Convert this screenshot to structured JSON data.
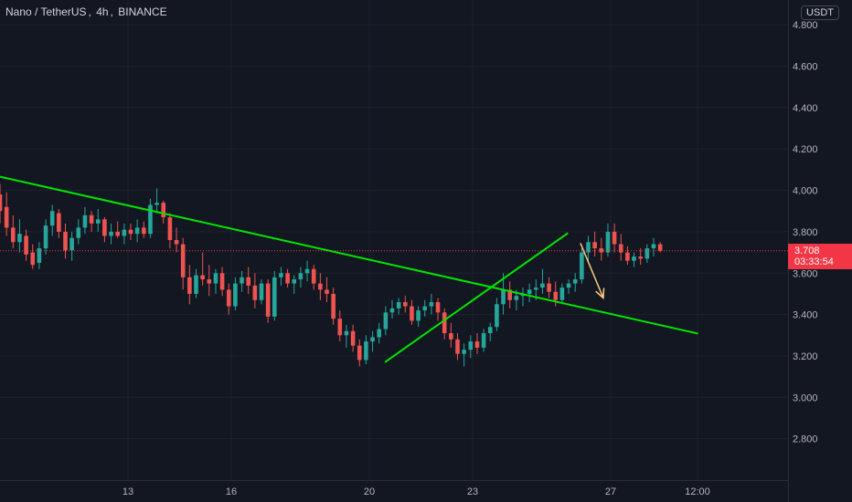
{
  "header": {
    "symbol": "Nano / TetherUS",
    "interval": "4h",
    "exchange": "BINANCE",
    "currency": "USDT"
  },
  "last_price": {
    "value": "3.708",
    "countdown": "03:33:54",
    "color": "#f23645"
  },
  "colors": {
    "background": "#131722",
    "up": "#26a69a",
    "down": "#ef5350",
    "trendline": "#00e600",
    "arrow": "#ffcc80"
  },
  "chart_data": {
    "type": "candlestick",
    "y_ticks": [
      "4.800",
      "4.600",
      "4.400",
      "4.200",
      "4.000",
      "3.800",
      "3.600",
      "3.400",
      "3.200",
      "3.000",
      "2.800"
    ],
    "x_ticks": [
      "13",
      "16",
      "20",
      "23",
      "27",
      "12:00"
    ],
    "ylim": [
      2.6,
      4.92
    ],
    "current_price": 3.708,
    "candles": [
      {
        "o": 3.98,
        "h": 4.03,
        "l": 3.84,
        "c": 3.9
      },
      {
        "o": 3.92,
        "h": 3.99,
        "l": 3.78,
        "c": 3.82
      },
      {
        "o": 3.82,
        "h": 3.88,
        "l": 3.72,
        "c": 3.75
      },
      {
        "o": 3.75,
        "h": 3.86,
        "l": 3.7,
        "c": 3.79
      },
      {
        "o": 3.78,
        "h": 3.81,
        "l": 3.66,
        "c": 3.69
      },
      {
        "o": 3.7,
        "h": 3.74,
        "l": 3.62,
        "c": 3.64
      },
      {
        "o": 3.65,
        "h": 3.75,
        "l": 3.62,
        "c": 3.72
      },
      {
        "o": 3.72,
        "h": 3.86,
        "l": 3.69,
        "c": 3.83
      },
      {
        "o": 3.83,
        "h": 3.93,
        "l": 3.78,
        "c": 3.9
      },
      {
        "o": 3.89,
        "h": 3.91,
        "l": 3.77,
        "c": 3.8
      },
      {
        "o": 3.8,
        "h": 3.84,
        "l": 3.67,
        "c": 3.71
      },
      {
        "o": 3.71,
        "h": 3.8,
        "l": 3.66,
        "c": 3.77
      },
      {
        "o": 3.77,
        "h": 3.86,
        "l": 3.74,
        "c": 3.82
      },
      {
        "o": 3.82,
        "h": 3.92,
        "l": 3.79,
        "c": 3.88
      },
      {
        "o": 3.88,
        "h": 3.9,
        "l": 3.8,
        "c": 3.84
      },
      {
        "o": 3.84,
        "h": 3.91,
        "l": 3.8,
        "c": 3.86
      },
      {
        "o": 3.86,
        "h": 3.87,
        "l": 3.75,
        "c": 3.78
      },
      {
        "o": 3.78,
        "h": 3.84,
        "l": 3.74,
        "c": 3.8
      },
      {
        "o": 3.8,
        "h": 3.85,
        "l": 3.77,
        "c": 3.78
      },
      {
        "o": 3.78,
        "h": 3.84,
        "l": 3.74,
        "c": 3.81
      },
      {
        "o": 3.81,
        "h": 3.84,
        "l": 3.76,
        "c": 3.79
      },
      {
        "o": 3.79,
        "h": 3.86,
        "l": 3.75,
        "c": 3.82
      },
      {
        "o": 3.82,
        "h": 3.85,
        "l": 3.77,
        "c": 3.79
      },
      {
        "o": 3.79,
        "h": 3.96,
        "l": 3.77,
        "c": 3.93
      },
      {
        "o": 3.93,
        "h": 4.01,
        "l": 3.89,
        "c": 3.94
      },
      {
        "o": 3.94,
        "h": 3.95,
        "l": 3.84,
        "c": 3.87
      },
      {
        "o": 3.87,
        "h": 3.89,
        "l": 3.72,
        "c": 3.76
      },
      {
        "o": 3.76,
        "h": 3.82,
        "l": 3.7,
        "c": 3.74
      },
      {
        "o": 3.74,
        "h": 3.77,
        "l": 3.52,
        "c": 3.58
      },
      {
        "o": 3.58,
        "h": 3.64,
        "l": 3.45,
        "c": 3.5
      },
      {
        "o": 3.5,
        "h": 3.62,
        "l": 3.48,
        "c": 3.59
      },
      {
        "o": 3.59,
        "h": 3.7,
        "l": 3.54,
        "c": 3.57
      },
      {
        "o": 3.57,
        "h": 3.64,
        "l": 3.49,
        "c": 3.55
      },
      {
        "o": 3.55,
        "h": 3.62,
        "l": 3.5,
        "c": 3.6
      },
      {
        "o": 3.6,
        "h": 3.63,
        "l": 3.49,
        "c": 3.52
      },
      {
        "o": 3.52,
        "h": 3.55,
        "l": 3.4,
        "c": 3.44
      },
      {
        "o": 3.44,
        "h": 3.58,
        "l": 3.42,
        "c": 3.55
      },
      {
        "o": 3.55,
        "h": 3.61,
        "l": 3.51,
        "c": 3.58
      },
      {
        "o": 3.58,
        "h": 3.63,
        "l": 3.5,
        "c": 3.54
      },
      {
        "o": 3.54,
        "h": 3.6,
        "l": 3.43,
        "c": 3.47
      },
      {
        "o": 3.47,
        "h": 3.57,
        "l": 3.45,
        "c": 3.55
      },
      {
        "o": 3.55,
        "h": 3.57,
        "l": 3.36,
        "c": 3.39
      },
      {
        "o": 3.39,
        "h": 3.61,
        "l": 3.37,
        "c": 3.58
      },
      {
        "o": 3.58,
        "h": 3.63,
        "l": 3.54,
        "c": 3.6
      },
      {
        "o": 3.6,
        "h": 3.62,
        "l": 3.53,
        "c": 3.55
      },
      {
        "o": 3.55,
        "h": 3.59,
        "l": 3.5,
        "c": 3.57
      },
      {
        "o": 3.57,
        "h": 3.63,
        "l": 3.53,
        "c": 3.6
      },
      {
        "o": 3.6,
        "h": 3.66,
        "l": 3.56,
        "c": 3.62
      },
      {
        "o": 3.62,
        "h": 3.64,
        "l": 3.52,
        "c": 3.55
      },
      {
        "o": 3.55,
        "h": 3.6,
        "l": 3.47,
        "c": 3.52
      },
      {
        "o": 3.52,
        "h": 3.58,
        "l": 3.46,
        "c": 3.5
      },
      {
        "o": 3.5,
        "h": 3.53,
        "l": 3.35,
        "c": 3.38
      },
      {
        "o": 3.38,
        "h": 3.42,
        "l": 3.27,
        "c": 3.3
      },
      {
        "o": 3.3,
        "h": 3.35,
        "l": 3.24,
        "c": 3.32
      },
      {
        "o": 3.32,
        "h": 3.35,
        "l": 3.22,
        "c": 3.25
      },
      {
        "o": 3.25,
        "h": 3.28,
        "l": 3.15,
        "c": 3.18
      },
      {
        "o": 3.18,
        "h": 3.3,
        "l": 3.16,
        "c": 3.27
      },
      {
        "o": 3.27,
        "h": 3.32,
        "l": 3.22,
        "c": 3.29
      },
      {
        "o": 3.29,
        "h": 3.36,
        "l": 3.26,
        "c": 3.33
      },
      {
        "o": 3.33,
        "h": 3.44,
        "l": 3.3,
        "c": 3.41
      },
      {
        "o": 3.41,
        "h": 3.47,
        "l": 3.38,
        "c": 3.43
      },
      {
        "o": 3.43,
        "h": 3.48,
        "l": 3.4,
        "c": 3.46
      },
      {
        "o": 3.46,
        "h": 3.49,
        "l": 3.41,
        "c": 3.44
      },
      {
        "o": 3.44,
        "h": 3.47,
        "l": 3.35,
        "c": 3.37
      },
      {
        "o": 3.37,
        "h": 3.44,
        "l": 3.34,
        "c": 3.42
      },
      {
        "o": 3.42,
        "h": 3.47,
        "l": 3.39,
        "c": 3.44
      },
      {
        "o": 3.44,
        "h": 3.5,
        "l": 3.4,
        "c": 3.46
      },
      {
        "o": 3.46,
        "h": 3.48,
        "l": 3.37,
        "c": 3.41
      },
      {
        "o": 3.41,
        "h": 3.43,
        "l": 3.28,
        "c": 3.31
      },
      {
        "o": 3.31,
        "h": 3.36,
        "l": 3.24,
        "c": 3.28
      },
      {
        "o": 3.28,
        "h": 3.31,
        "l": 3.18,
        "c": 3.21
      },
      {
        "o": 3.21,
        "h": 3.26,
        "l": 3.15,
        "c": 3.23
      },
      {
        "o": 3.23,
        "h": 3.3,
        "l": 3.19,
        "c": 3.27
      },
      {
        "o": 3.27,
        "h": 3.31,
        "l": 3.21,
        "c": 3.24
      },
      {
        "o": 3.24,
        "h": 3.33,
        "l": 3.22,
        "c": 3.31
      },
      {
        "o": 3.31,
        "h": 3.36,
        "l": 3.27,
        "c": 3.34
      },
      {
        "o": 3.34,
        "h": 3.48,
        "l": 3.32,
        "c": 3.45
      },
      {
        "o": 3.45,
        "h": 3.6,
        "l": 3.4,
        "c": 3.52
      },
      {
        "o": 3.52,
        "h": 3.56,
        "l": 3.43,
        "c": 3.47
      },
      {
        "o": 3.47,
        "h": 3.52,
        "l": 3.42,
        "c": 3.49
      },
      {
        "o": 3.49,
        "h": 3.53,
        "l": 3.44,
        "c": 3.5
      },
      {
        "o": 3.5,
        "h": 3.55,
        "l": 3.46,
        "c": 3.52
      },
      {
        "o": 3.52,
        "h": 3.57,
        "l": 3.47,
        "c": 3.53
      },
      {
        "o": 3.53,
        "h": 3.62,
        "l": 3.5,
        "c": 3.55
      },
      {
        "o": 3.55,
        "h": 3.58,
        "l": 3.48,
        "c": 3.51
      },
      {
        "o": 3.51,
        "h": 3.56,
        "l": 3.44,
        "c": 3.47
      },
      {
        "o": 3.47,
        "h": 3.55,
        "l": 3.45,
        "c": 3.53
      },
      {
        "o": 3.53,
        "h": 3.57,
        "l": 3.5,
        "c": 3.55
      },
      {
        "o": 3.55,
        "h": 3.6,
        "l": 3.51,
        "c": 3.57
      },
      {
        "o": 3.57,
        "h": 3.72,
        "l": 3.55,
        "c": 3.7
      },
      {
        "o": 3.7,
        "h": 3.78,
        "l": 3.66,
        "c": 3.75
      },
      {
        "o": 3.75,
        "h": 3.8,
        "l": 3.68,
        "c": 3.72
      },
      {
        "o": 3.72,
        "h": 3.77,
        "l": 3.66,
        "c": 3.7
      },
      {
        "o": 3.7,
        "h": 3.84,
        "l": 3.68,
        "c": 3.8
      },
      {
        "o": 3.8,
        "h": 3.84,
        "l": 3.7,
        "c": 3.74
      },
      {
        "o": 3.74,
        "h": 3.79,
        "l": 3.66,
        "c": 3.7
      },
      {
        "o": 3.7,
        "h": 3.73,
        "l": 3.64,
        "c": 3.66
      },
      {
        "o": 3.66,
        "h": 3.7,
        "l": 3.63,
        "c": 3.68
      },
      {
        "o": 3.68,
        "h": 3.72,
        "l": 3.64,
        "c": 3.67
      },
      {
        "o": 3.67,
        "h": 3.74,
        "l": 3.65,
        "c": 3.72
      },
      {
        "o": 3.72,
        "h": 3.77,
        "l": 3.68,
        "c": 3.74
      },
      {
        "o": 3.74,
        "h": 3.75,
        "l": 3.7,
        "c": 3.708
      }
    ],
    "trendlines": [
      {
        "name": "resistance",
        "p1": [
          0.0,
          4.066
        ],
        "p2": [
          106.8,
          3.308
        ]
      },
      {
        "name": "support",
        "p1": [
          58.9,
          3.17
        ],
        "p2": [
          86.9,
          3.794
        ]
      }
    ],
    "arrow": {
      "from": [
        88.8,
        3.745
      ],
      "to": [
        92.3,
        3.48
      ]
    }
  }
}
